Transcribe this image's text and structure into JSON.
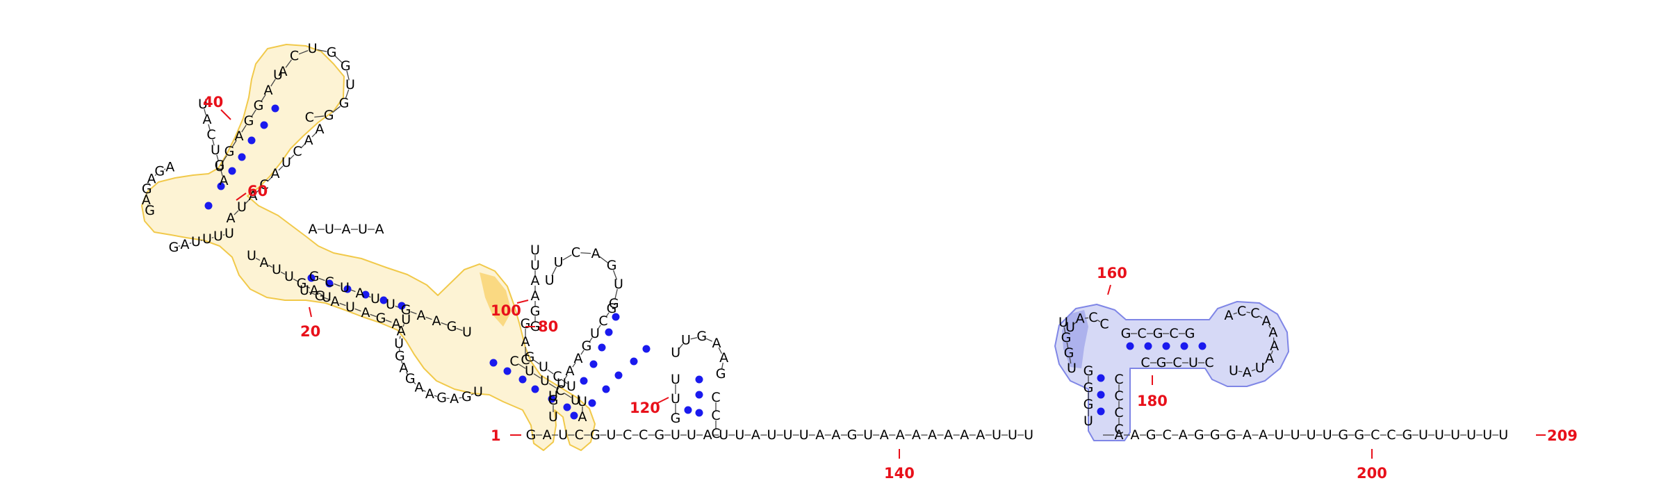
{
  "structure": {
    "sequence": "GAUCGUCCGUUAUUAUUUAAGUAAAAAAAUUUAAGCAGGGAAUUUUGGCCGUUUUUU",
    "labels": {
      "n1": "1",
      "n20": "20",
      "n40": "40",
      "n60": "60",
      "n80": "80",
      "n100": "100",
      "n120": "120",
      "n140": "140",
      "n160": "160",
      "n180": "180",
      "n200": "200",
      "n209": "209"
    }
  },
  "colors": {
    "nucleotide": "#000000",
    "base_pair": "#1a1aee",
    "position_label": "#e8101a",
    "highlight_yellow_fill": "#fdf3d4",
    "highlight_yellow_stroke": "#f1c94a",
    "highlight_yellow_strong": "#f7c23e",
    "highlight_blue_fill": "#d6d9f6",
    "highlight_blue_stroke": "#7f86e6",
    "highlight_blue_strong": "#8d92e6"
  }
}
